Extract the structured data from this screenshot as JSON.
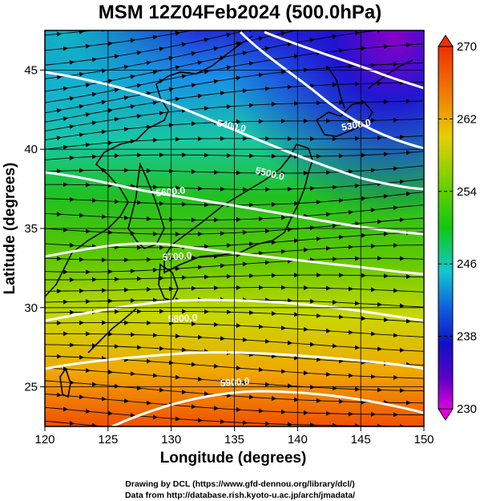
{
  "title": "MSM 12Z04Feb2024 (500.0hPa)",
  "credits": {
    "line1": "Drawing by DCL (https://www.gfd-dennou.org/library/dcl/)",
    "line2": "Data from http://database.rish.kyoto-u.ac.jp/arch/jmadata/"
  },
  "map": {
    "xlabel": "Longitude (degrees)",
    "ylabel": "Latitude  (degrees)",
    "lon_range": [
      120,
      150
    ],
    "lat_range": [
      22.5,
      47.5
    ],
    "lon_ticks": [
      "120",
      "125",
      "130",
      "135",
      "140",
      "145",
      "150"
    ],
    "lat_ticks": [
      "25",
      "30",
      "35",
      "40",
      "45"
    ],
    "grid": true
  },
  "colorbar": {
    "range": [
      230,
      270
    ],
    "tick_labels": [
      "270",
      "262",
      "254",
      "246",
      "238",
      "230"
    ]
  },
  "contours": [
    {
      "label": "5300.0"
    },
    {
      "label": "5400.0"
    },
    {
      "label": "5500.0"
    },
    {
      "label": "5600.0"
    },
    {
      "label": "5700.0"
    },
    {
      "label": "5800.0"
    },
    {
      "label": "5900.0"
    }
  ],
  "colors": {
    "coldest": "#b800d8",
    "cold": "#1a10c8",
    "mid": "#20c000",
    "warm": "#f0d000",
    "hottest": "#f03000",
    "contour": "#ffffff",
    "streamline": "#000000"
  }
}
